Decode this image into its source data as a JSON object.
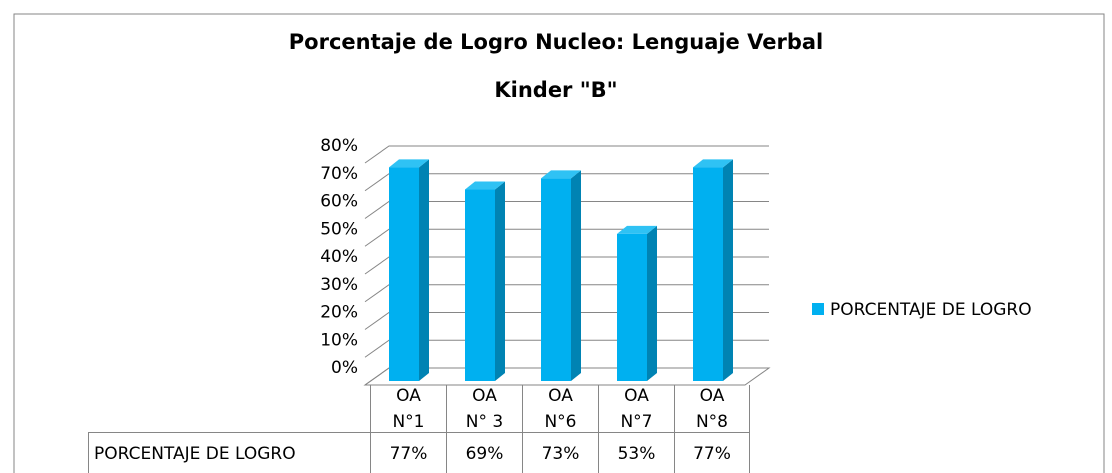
{
  "chart_data": {
    "type": "bar3d",
    "title": "Porcentaje de Logro Nucleo: Lenguaje Verbal",
    "subtitle": "Kinder \"B\"",
    "categories": [
      "OA N°1",
      "OA N° 3",
      "OA N°6",
      "OA N°7",
      "OA N°8"
    ],
    "series": [
      {
        "name": "PORCENTAJE DE LOGRO",
        "color": "#00b0f0",
        "values": [
          77,
          69,
          73,
          53,
          77
        ],
        "value_labels": [
          "77%",
          "69%",
          "73%",
          "53%",
          "77%"
        ]
      }
    ],
    "ylim": [
      0,
      80
    ],
    "yticks": [
      {
        "value": 0,
        "label": "0%"
      },
      {
        "value": 10,
        "label": "10%"
      },
      {
        "value": 20,
        "label": "20%"
      },
      {
        "value": 30,
        "label": "30%"
      },
      {
        "value": 40,
        "label": "40%"
      },
      {
        "value": 50,
        "label": "50%"
      },
      {
        "value": 60,
        "label": "60%"
      },
      {
        "value": 70,
        "label": "70%"
      },
      {
        "value": 80,
        "label": "80%"
      }
    ],
    "grid": true,
    "legend": "right",
    "data_table": true
  }
}
